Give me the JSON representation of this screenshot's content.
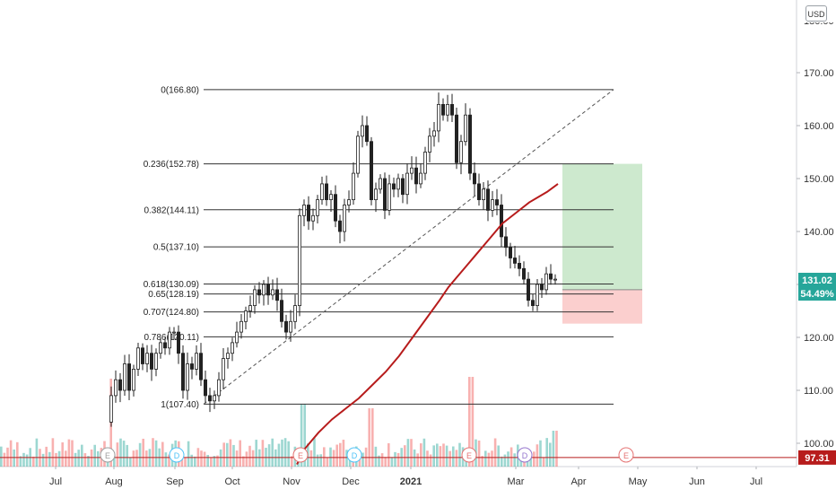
{
  "chart_data": {
    "type": "candlestick",
    "currency": "USD",
    "x_ticks": [
      "Jul",
      "Aug",
      "Sep",
      "Oct",
      "Nov",
      "Dec",
      "2021",
      "Mar",
      "Apr",
      "May",
      "Jun",
      "Jul"
    ],
    "y_ticks": [
      "170.00",
      "160.00",
      "150.00",
      "140.00",
      "130.00",
      "120.00",
      "110.00",
      "100.00"
    ],
    "ylim": [
      97,
      172
    ],
    "grid": false,
    "fib_levels": [
      {
        "label": "0(166.80)",
        "value": 166.8
      },
      {
        "label": "0.236(152.78)",
        "value": 152.78
      },
      {
        "label": "0.382(144.11)",
        "value": 144.11
      },
      {
        "label": "0.5(137.10)",
        "value": 137.1
      },
      {
        "label": "0.618(130.09)",
        "value": 130.09
      },
      {
        "label": "0.65(128.19)",
        "value": 128.19
      },
      {
        "label": "0.707(124.80)",
        "value": 124.8
      },
      {
        "label": "0.786(120.11)",
        "value": 120.11
      },
      {
        "label": "1(107.40)",
        "value": 107.4
      }
    ],
    "price_labels": [
      {
        "text": "131.02",
        "color": "#26a69a"
      },
      {
        "text": "54.49%",
        "color": "#26a69a"
      },
      {
        "text": "97.31",
        "color": "#b71c1c"
      }
    ],
    "moving_average": {
      "color": "#b71c1c",
      "points": [
        [
          331,
          96
        ],
        [
          340,
          99
        ],
        [
          355,
          102
        ],
        [
          370,
          104.5
        ],
        [
          385,
          106.5
        ],
        [
          400,
          108.5
        ],
        [
          415,
          111
        ],
        [
          430,
          113.5
        ],
        [
          445,
          116.5
        ],
        [
          460,
          120
        ],
        [
          475,
          123.5
        ],
        [
          490,
          127
        ],
        [
          500,
          129.5
        ],
        [
          510,
          131.5
        ],
        [
          520,
          133.5
        ],
        [
          530,
          135.5
        ],
        [
          545,
          138.5
        ],
        [
          560,
          141.5
        ],
        [
          575,
          143.5
        ],
        [
          590,
          145.5
        ],
        [
          610,
          147.5
        ],
        [
          622,
          149
        ]
      ]
    },
    "horizontal_line": {
      "value": 97.31,
      "color": "#b71c1c"
    },
    "position_tool": {
      "entry": 129.0,
      "target": 152.78,
      "stop": 122.6
    },
    "event_markers": [
      {
        "letter": "E",
        "x": 120,
        "color": "#9e9e9e"
      },
      {
        "letter": "D",
        "x": 197,
        "color": "#4fc3f7"
      },
      {
        "letter": "E",
        "x": 335,
        "color": "#e57373"
      },
      {
        "letter": "D",
        "x": 395,
        "color": "#4fc3f7"
      },
      {
        "letter": "E",
        "x": 523,
        "color": "#e57373"
      },
      {
        "letter": "D",
        "x": 585,
        "color": "#9575cd"
      },
      {
        "letter": "E",
        "x": 698,
        "color": "#e57373"
      }
    ]
  }
}
